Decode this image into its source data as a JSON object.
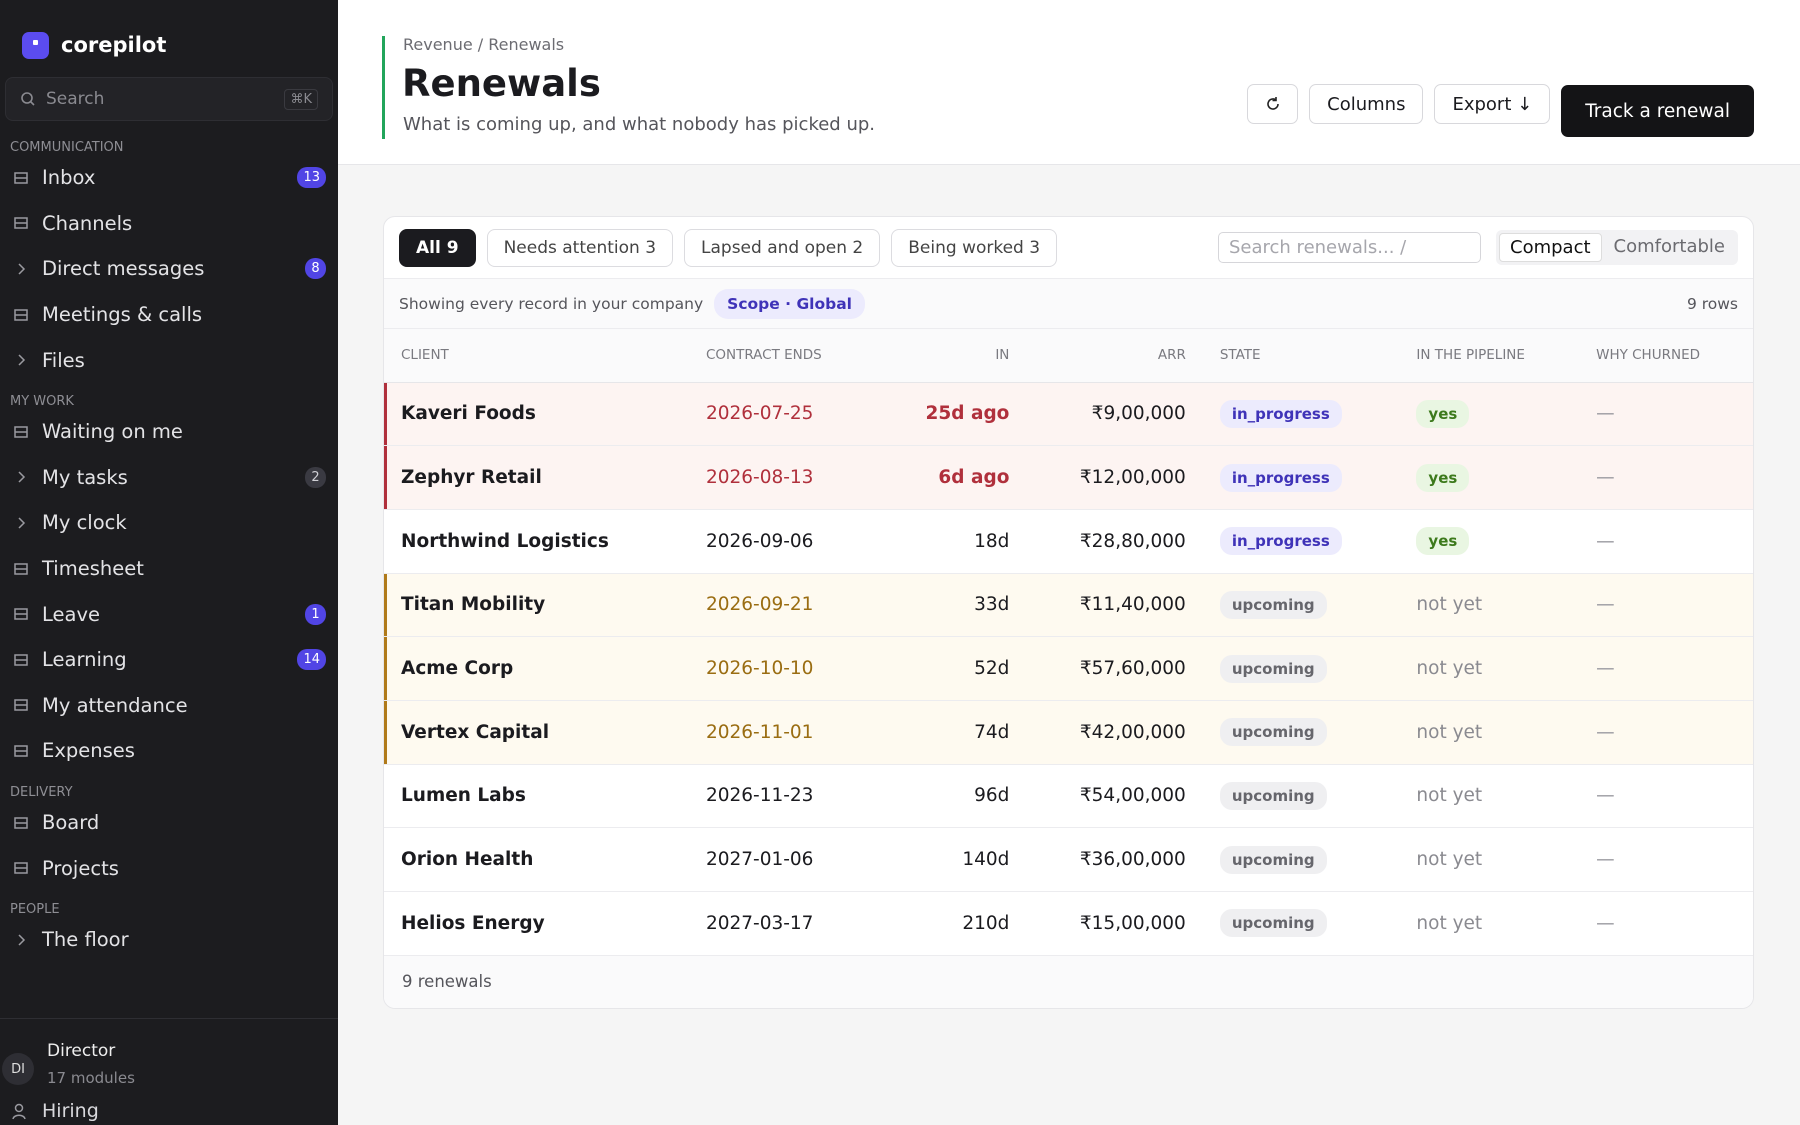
{
  "brand": "corepilot",
  "sidebar": {
    "search": "Search",
    "shortcut": "⌘K",
    "sections": [
      {
        "title": "COMMUNICATION",
        "items": [
          {
            "label": "Inbox",
            "badge": 13
          },
          {
            "label": "Channels"
          },
          {
            "label": "Direct messages",
            "badge": 8,
            "expandable": true
          },
          {
            "label": "Meetings & calls"
          },
          {
            "label": "Files",
            "expandable": true
          }
        ]
      },
      {
        "title": "MY WORK",
        "items": [
          {
            "label": "Waiting on me"
          },
          {
            "label": "My tasks",
            "badge": 2,
            "expandable": true,
            "muted_badge": true
          },
          {
            "label": "My clock",
            "expandable": true
          },
          {
            "label": "Timesheet"
          },
          {
            "label": "Leave",
            "badge": 1
          },
          {
            "label": "Learning",
            "badge": 14
          },
          {
            "label": "My attendance"
          },
          {
            "label": "Expenses"
          }
        ]
      },
      {
        "title": "DELIVERY",
        "items": [
          {
            "label": "Board"
          },
          {
            "label": "Projects"
          }
        ]
      },
      {
        "title": "PEOPLE",
        "items": [
          {
            "label": "The floor",
            "expandable": true
          }
        ]
      }
    ],
    "user": {
      "initials": "DI",
      "name": "Director",
      "sub": "17 modules"
    },
    "extra": "Hiring"
  },
  "header": {
    "breadcrumb": "Revenue / Renewals",
    "title": "Renewals",
    "subtitle": "What is coming up, and what nobody has picked up.",
    "buttons": [
      "Columns",
      "Export ↓"
    ],
    "primary": "Track a renewal"
  },
  "toolbar": {
    "tabs": [
      "All 9",
      "Needs attention 3",
      "Lapsed and open 2",
      "Being worked 3"
    ],
    "search": "Search renewals...  /",
    "density": [
      "Compact",
      "Comfortable"
    ]
  },
  "scope": {
    "text": "Showing every record in your company",
    "chip": "Scope · Global",
    "count": "9 rows"
  },
  "table": {
    "columns": [
      "CLIENT",
      "CONTRACT ENDS",
      "IN",
      "ARR",
      "STATE",
      "IN THE PIPELINE",
      "WHY CHURNED"
    ],
    "rows": [
      {
        "cells": [
          "Kaveri Foods",
          "2026-07-25",
          "25d ago",
          "₹9,00,000",
          "in_progress",
          "yes",
          "—"
        ],
        "highlight": "danger",
        "active": true
      },
      {
        "cells": [
          "Zephyr Retail",
          "2026-08-13",
          "6d ago",
          "₹12,00,000",
          "in_progress",
          "yes",
          "—"
        ],
        "highlight": "danger",
        "active": true
      },
      {
        "cells": [
          "Northwind Logistics",
          "2026-09-06",
          "18d",
          "₹28,80,000",
          "in_progress",
          "yes",
          "—"
        ],
        "highlight": "none",
        "active": true
      },
      {
        "cells": [
          "Titan Mobility",
          "2026-09-21",
          "33d",
          "₹11,40,000",
          "upcoming",
          "not yet",
          "—"
        ],
        "highlight": "warning",
        "active": false
      },
      {
        "cells": [
          "Acme Corp",
          "2026-10-10",
          "52d",
          "₹57,60,000",
          "upcoming",
          "not yet",
          "—"
        ],
        "highlight": "warning",
        "active": false
      },
      {
        "cells": [
          "Vertex Capital",
          "2026-11-01",
          "74d",
          "₹42,00,000",
          "upcoming",
          "not yet",
          "—"
        ],
        "highlight": "warning",
        "active": false
      },
      {
        "cells": [
          "Lumen Labs",
          "2026-11-23",
          "96d",
          "₹54,00,000",
          "upcoming",
          "not yet",
          "—"
        ],
        "highlight": "none",
        "active": false
      },
      {
        "cells": [
          "Orion Health",
          "2027-01-06",
          "140d",
          "₹36,00,000",
          "upcoming",
          "not yet",
          "—"
        ],
        "highlight": "none",
        "active": false
      },
      {
        "cells": [
          "Helios Energy",
          "2027-03-17",
          "210d",
          "₹15,00,000",
          "upcoming",
          "not yet",
          "—"
        ],
        "highlight": "none",
        "active": false
      }
    ],
    "footer": "9 renewals"
  }
}
